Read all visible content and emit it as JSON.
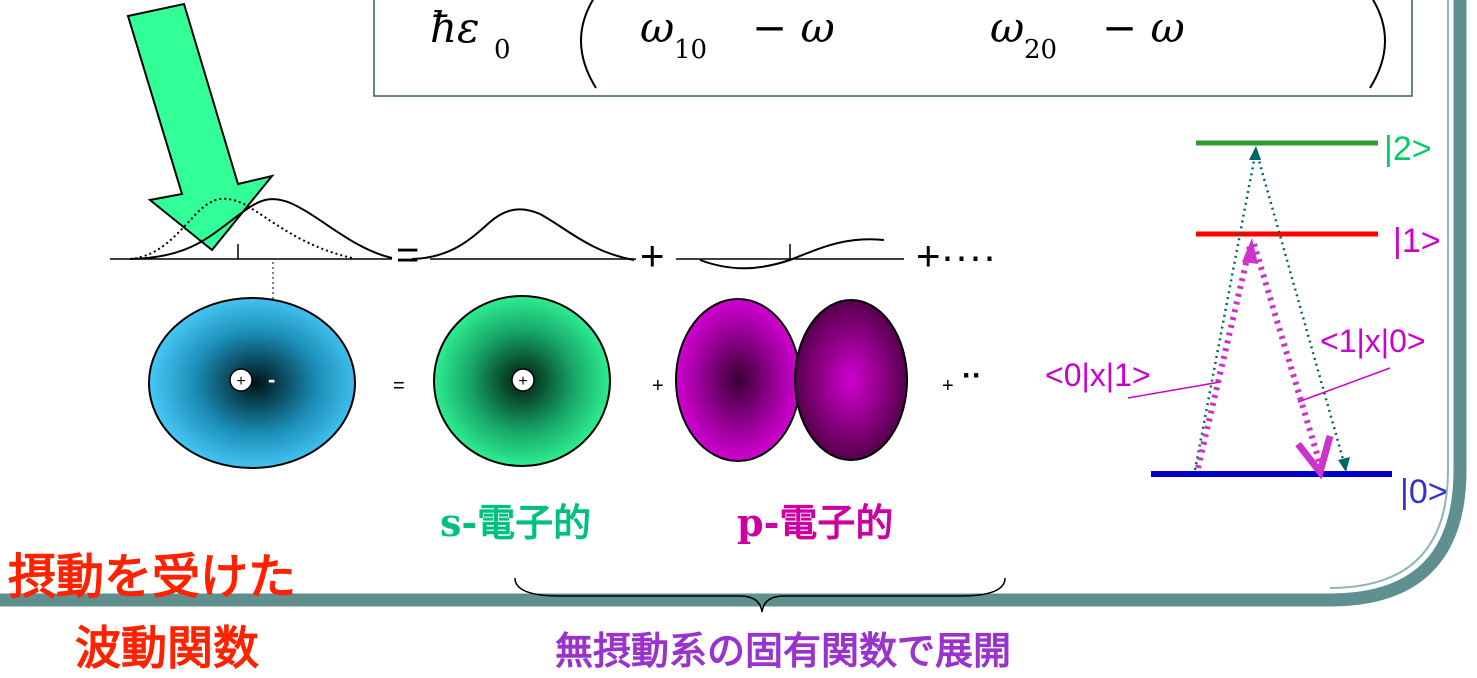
{
  "formula": {
    "lhs_denominator": "ħε",
    "lhs_subscript": "0",
    "term1_omega": "ω",
    "term1_subscript": "10",
    "term1_minus": "− ω",
    "term2_omega": "ω",
    "term2_subscript": "20",
    "term2_minus": "− ω"
  },
  "equation_row": {
    "equals": "=",
    "plus": "+",
    "plus_ellipsis": "+····"
  },
  "orbitals": {
    "equals": "=",
    "plus1": "+",
    "plus2": "+",
    "ellipsis": "··",
    "plus_sign": "+",
    "minus_sign": "-",
    "s_label": "s-電子的",
    "p_label": "p-電子的"
  },
  "captions": {
    "perturbed_line1": "摂動を受けた",
    "perturbed_line2": "波動関数",
    "expansion": "無摂動系の固有関数で展開"
  },
  "levels": {
    "level2": "|2>",
    "level1": "|1>",
    "level0": "|0>",
    "matrix_left": "<0|x|1>",
    "matrix_right": "<1|x|0>"
  },
  "colors": {
    "arrow_green": "#33ff99",
    "level2_line": "#339933",
    "level1_line": "#ff0000",
    "level0_line": "#0000cc",
    "level2_text": "#00cc66",
    "level1_text": "#cc00cc",
    "level0_text": "#3333cc",
    "dotted_teal": "#006666",
    "dotted_magenta": "#cc33cc",
    "caption_red": "#ff2200",
    "caption_purple": "#9933cc",
    "frame": "#5f8f8f"
  }
}
